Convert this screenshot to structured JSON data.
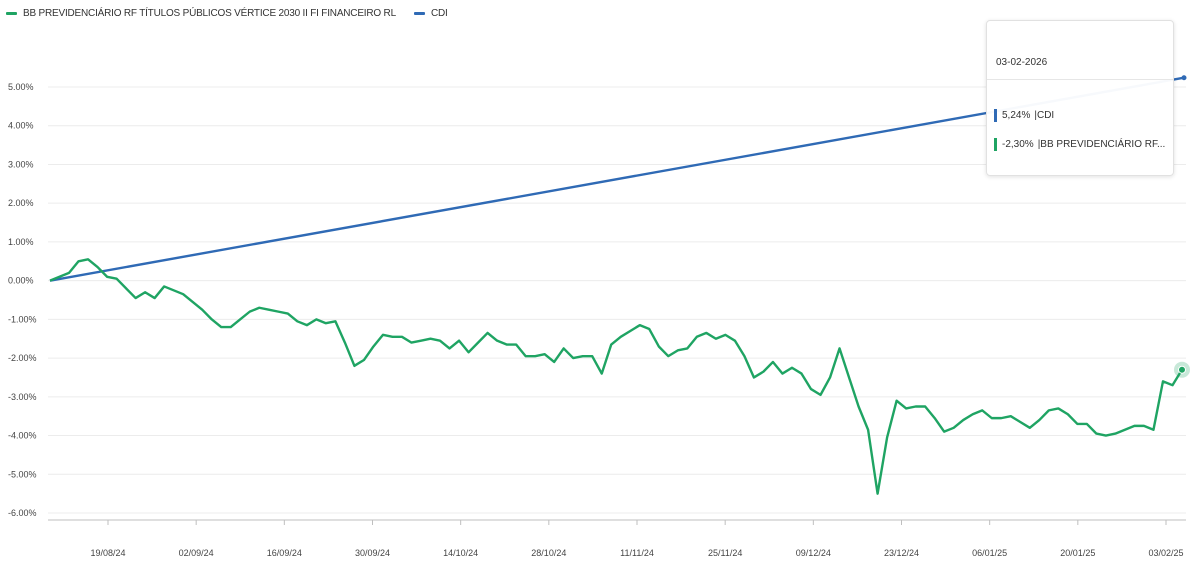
{
  "legend": [
    {
      "label": "BB PREVIDENCIÁRIO RF TÍTULOS PÚBLICOS VÉRTICE 2030 II FI FINANCEIRO RL",
      "color": "#1fa463"
    },
    {
      "label": "CDI",
      "color": "#2f6ab5"
    }
  ],
  "tooltip": {
    "date": "03-02-2026",
    "rows": [
      {
        "value": "5,24%",
        "label": "CDI",
        "color": "#2f6ab5"
      },
      {
        "value": "-2,30%",
        "label": "BB PREVIDENCIÁRIO RF...",
        "color": "#1fa463"
      }
    ]
  },
  "chart_data": {
    "type": "line",
    "x_tick_labels": [
      "19/08/24",
      "02/09/24",
      "16/09/24",
      "30/09/24",
      "14/10/24",
      "28/10/24",
      "11/11/24",
      "25/11/24",
      "09/12/24",
      "23/12/24",
      "06/01/25",
      "20/01/25",
      "03/02/25"
    ],
    "y_tick_labels": [
      "5.00%",
      "4.00%",
      "3.00%",
      "2.00%",
      "1.00%",
      "0.00%",
      "-1.00%",
      "-2.00%",
      "-3.00%",
      "-4.00%",
      "-5.00%",
      "-6.00%"
    ],
    "ylim": [
      -6,
      5
    ],
    "grid": true,
    "legend_position": "top-left",
    "series": [
      {
        "name": "CDI",
        "color": "#2f6ab5",
        "values": [
          0.0,
          5.24
        ]
      },
      {
        "name": "BB PREVIDENCIÁRIO RF TÍTULOS PÚBLICOS VÉRTICE 2030 II FI FINANCEIRO RL",
        "color": "#1fa463",
        "values": [
          0.0,
          0.1,
          0.2,
          0.5,
          0.55,
          0.35,
          0.1,
          0.05,
          -0.2,
          -0.45,
          -0.3,
          -0.45,
          -0.15,
          -0.25,
          -0.35,
          -0.55,
          -0.75,
          -1.0,
          -1.2,
          -1.2,
          -1.0,
          -0.8,
          -0.7,
          -0.75,
          -0.8,
          -0.85,
          -1.05,
          -1.15,
          -1.0,
          -1.1,
          -1.05,
          -1.6,
          -2.2,
          -2.05,
          -1.7,
          -1.4,
          -1.45,
          -1.45,
          -1.6,
          -1.55,
          -1.5,
          -1.55,
          -1.75,
          -1.55,
          -1.85,
          -1.6,
          -1.35,
          -1.55,
          -1.65,
          -1.65,
          -1.95,
          -1.95,
          -1.9,
          -2.1,
          -1.75,
          -2.0,
          -1.95,
          -1.95,
          -2.4,
          -1.65,
          -1.45,
          -1.3,
          -1.15,
          -1.25,
          -1.7,
          -1.95,
          -1.8,
          -1.75,
          -1.45,
          -1.35,
          -1.5,
          -1.4,
          -1.55,
          -1.95,
          -2.5,
          -2.35,
          -2.1,
          -2.4,
          -2.25,
          -2.4,
          -2.8,
          -2.95,
          -2.5,
          -1.75,
          -2.5,
          -3.25,
          -3.85,
          -5.5,
          -4.05,
          -3.1,
          -3.3,
          -3.25,
          -3.25,
          -3.55,
          -3.9,
          -3.8,
          -3.6,
          -3.45,
          -3.35,
          -3.55,
          -3.55,
          -3.5,
          -3.65,
          -3.8,
          -3.6,
          -3.35,
          -3.3,
          -3.45,
          -3.7,
          -3.7,
          -3.95,
          -4.0,
          -3.95,
          -3.85,
          -3.75,
          -3.75,
          -3.85,
          -2.6,
          -2.7,
          -2.3
        ]
      }
    ]
  }
}
